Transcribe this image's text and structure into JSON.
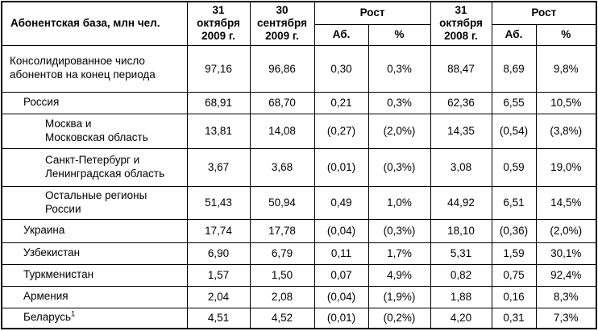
{
  "colors": {
    "background": "#ffffff",
    "border": "#000000",
    "text": "#000000"
  },
  "table": {
    "header": {
      "label": "Абонентская база, млн чел.",
      "col_oct_2009": "31\nоктября\n2009 г.",
      "col_sep_2009": "30\nсентября\n2009 г.",
      "growth_1": "Рост",
      "growth_1_abs": "Аб.",
      "growth_1_pct": "%",
      "col_oct_2008": "31\nоктября\n2008 г.",
      "growth_2": "Рост",
      "growth_2_abs": "Аб.",
      "growth_2_pct": "%"
    },
    "rows": [
      {
        "label": "Консолидированное число\nабонентов на конец периода",
        "indent": 0,
        "values": [
          "97,16",
          "96,86",
          "0,30",
          "0,3%",
          "88,47",
          "8,69",
          "9,8%"
        ]
      },
      {
        "label": "Россия",
        "indent": 1,
        "values": [
          "68,91",
          "68,70",
          "0,21",
          "0,3%",
          "62,36",
          "6,55",
          "10,5%"
        ]
      },
      {
        "label": "Москва и\nМосковская область",
        "indent": 2,
        "values": [
          "13,81",
          "14,08",
          "(0,27)",
          "(2,0%)",
          "14,35",
          "(0,54)",
          "(3,8%)"
        ]
      },
      {
        "label": "Санкт-Петербург и\nЛенинградская область",
        "indent": 2,
        "values": [
          "3,67",
          "3,68",
          "(0,01)",
          "(0,3%)",
          "3,08",
          "0,59",
          "19,0%"
        ]
      },
      {
        "label": "Остальные регионы\nРоссии",
        "indent": 2,
        "values": [
          "51,43",
          "50,94",
          "0,49",
          "1,0%",
          "44,92",
          "6,51",
          "14,5%"
        ]
      },
      {
        "label": "Украина",
        "indent": 1,
        "values": [
          "17,74",
          "17,78",
          "(0,04)",
          "(0,3%)",
          "18,10",
          "(0,36)",
          "(2,0%)"
        ]
      },
      {
        "label": "Узбекистан",
        "indent": 1,
        "values": [
          "6,90",
          "6,79",
          "0,11",
          "1,7%",
          "5,31",
          "1,59",
          "30,1%"
        ]
      },
      {
        "label": "Туркменистан",
        "indent": 1,
        "values": [
          "1,57",
          "1,50",
          "0,07",
          "4,9%",
          "0,82",
          "0,75",
          "92,4%"
        ]
      },
      {
        "label": "Армения",
        "indent": 1,
        "values": [
          "2,04",
          "2,08",
          "(0,04)",
          "(1,9%)",
          "1,88",
          "0,16",
          "8,3%"
        ]
      },
      {
        "label": "Беларусь",
        "footnote": "1",
        "indent": 1,
        "values": [
          "4,51",
          "4,52",
          "(0,01)",
          "(0,2%)",
          "4,20",
          "0,31",
          "7,3%"
        ]
      }
    ]
  }
}
